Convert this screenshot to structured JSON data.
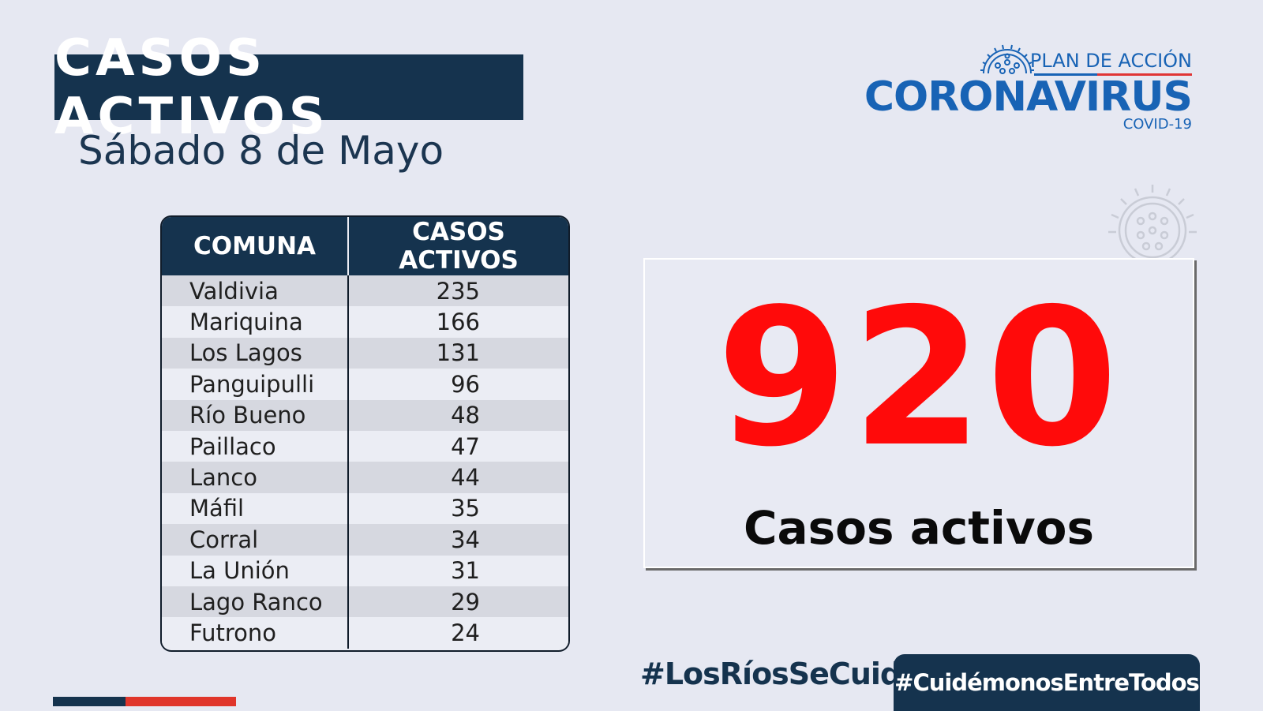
{
  "header": {
    "title": "CASOS ACTIVOS",
    "date": "Sábado 8 de Mayo"
  },
  "logo": {
    "plan": "PLAN DE ACCIÓN",
    "name": "CORONAVIRUS",
    "sub": "COVID-19"
  },
  "table": {
    "headers": [
      "COMUNA",
      "CASOS ACTIVOS"
    ],
    "rows": [
      {
        "comuna": "Valdivia",
        "casos": "235"
      },
      {
        "comuna": "Mariquina",
        "casos": "166"
      },
      {
        "comuna": "Los Lagos",
        "casos": "131"
      },
      {
        "comuna": "Panguipulli",
        "casos": "96"
      },
      {
        "comuna": "Río Bueno",
        "casos": "48"
      },
      {
        "comuna": "Paillaco",
        "casos": "47"
      },
      {
        "comuna": "Lanco",
        "casos": "44"
      },
      {
        "comuna": "Máfil",
        "casos": "35"
      },
      {
        "comuna": "Corral",
        "casos": "34"
      },
      {
        "comuna": "La Unión",
        "casos": "31"
      },
      {
        "comuna": "Lago Ranco",
        "casos": "29"
      },
      {
        "comuna": "Futrono",
        "casos": "24"
      }
    ]
  },
  "total": {
    "value": "920",
    "label": "Casos activos"
  },
  "footer": {
    "hashtag_region": "#LosRíosSeCuida",
    "hashtag_campaign": "#CuidémonosEntreTodos"
  },
  "colors": {
    "navy": "#15334e",
    "accent_red": "#ff0a0a",
    "logo_blue": "#1863b5"
  }
}
